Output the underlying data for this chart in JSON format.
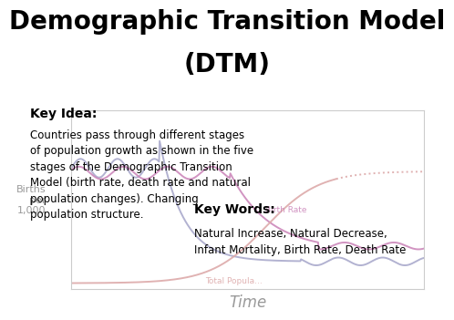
{
  "title_line1": "Demographic Transition Model",
  "title_line2": "(DTM)",
  "title_fontsize": 20,
  "title_fontweight": "bold",
  "background_color": "#ffffff",
  "chart_bg_color": "#ffffff",
  "xlabel": "Time",
  "ylabel": "Births\nper\n1,000",
  "xlabel_fontsize": 12,
  "ylabel_fontsize": 8,
  "birth_rate_color": "#cc88bb",
  "death_rate_color": "#aaaacc",
  "total_pop_color": "#ddaaaa",
  "key_idea_header": "Key Idea:",
  "key_idea_text": "Countries pass through different stages\nof population growth as shown in the five\nstages of the Demographic Transition\nModel (birth rate, death rate and natural\npopulation changes). Changing\npopulation structure.",
  "key_words_header": "Key Words:",
  "key_words_text": "Natural Increase, Natural Decrease,\nInfant Mortality, Birth Rate, Death Rate",
  "birth_rate_label": "Birth Rate",
  "total_pop_label": "Total Popula...",
  "text_fontsize": 8.5,
  "header_fontsize": 10,
  "axis_label_color": "#999999"
}
